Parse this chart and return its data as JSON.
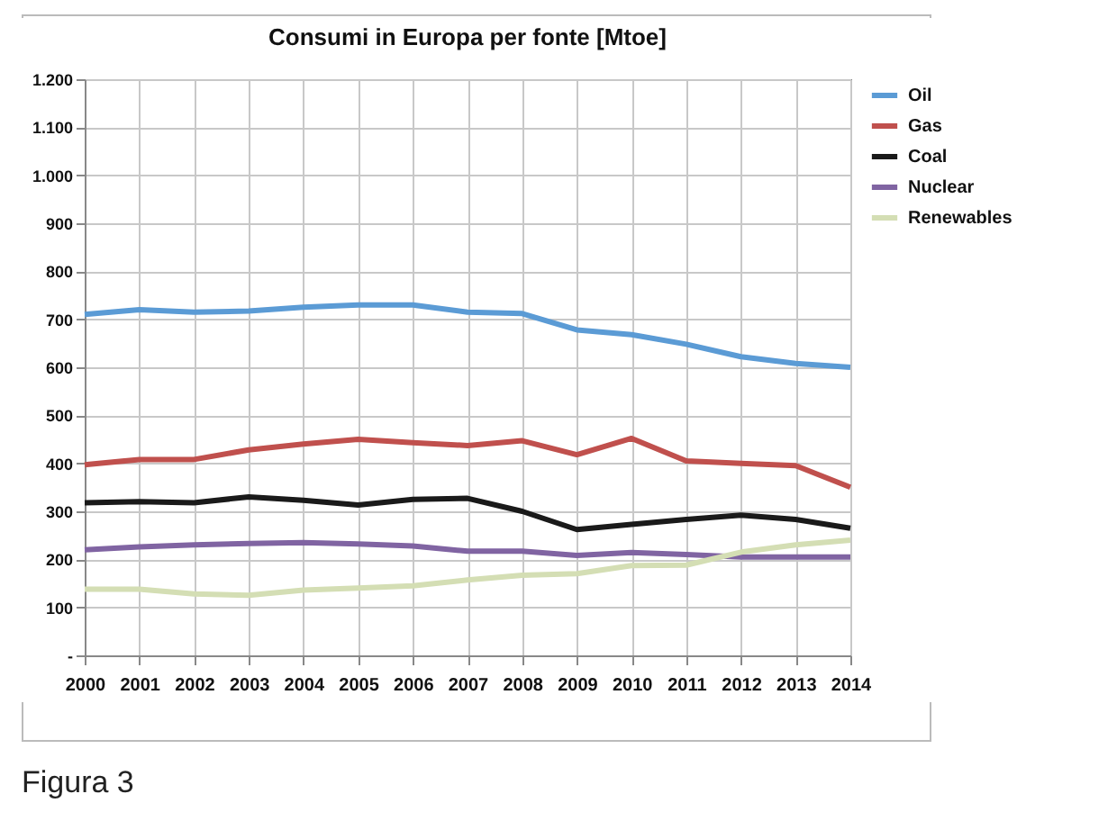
{
  "chart_data": {
    "type": "line",
    "title": "Consumi in Europa per fonte [Mtoe]",
    "categories": [
      "2000",
      "2001",
      "2002",
      "2003",
      "2004",
      "2005",
      "2006",
      "2007",
      "2008",
      "2009",
      "2010",
      "2011",
      "2012",
      "2013",
      "2014"
    ],
    "series": [
      {
        "name": "Oil",
        "color": "#5b9bd5",
        "values": [
          710,
          720,
          715,
          717,
          725,
          730,
          730,
          715,
          712,
          678,
          668,
          648,
          622,
          608,
          600
        ]
      },
      {
        "name": "Gas",
        "color": "#c0504d",
        "values": [
          397,
          408,
          408,
          428,
          440,
          450,
          443,
          437,
          447,
          418,
          452,
          405,
          400,
          395,
          350
        ]
      },
      {
        "name": "Coal",
        "color": "#1a1a1a",
        "values": [
          318,
          320,
          318,
          330,
          323,
          313,
          325,
          327,
          300,
          262,
          273,
          283,
          292,
          283,
          265
        ]
      },
      {
        "name": "Nuclear",
        "color": "#8064a2",
        "values": [
          220,
          226,
          230,
          233,
          235,
          232,
          228,
          217,
          217,
          208,
          214,
          210,
          205,
          205,
          205
        ]
      },
      {
        "name": "Renewables",
        "color": "#d4deb4",
        "values": [
          138,
          138,
          128,
          125,
          136,
          140,
          145,
          157,
          167,
          170,
          187,
          188,
          215,
          230,
          240
        ]
      }
    ],
    "ylim": [
      0,
      1200
    ],
    "yticks": [
      {
        "value": 0,
        "label": "-"
      },
      100,
      200,
      300,
      400,
      500,
      600,
      700,
      800,
      900,
      {
        "value": 1000,
        "label": "1.000"
      },
      {
        "value": 1100,
        "label": "1.100"
      },
      {
        "value": 1200,
        "label": "1.200"
      }
    ],
    "grid": true,
    "legend": "right",
    "marker": "none",
    "line_style": "solid",
    "annotations": [
      "Figura 3"
    ]
  }
}
